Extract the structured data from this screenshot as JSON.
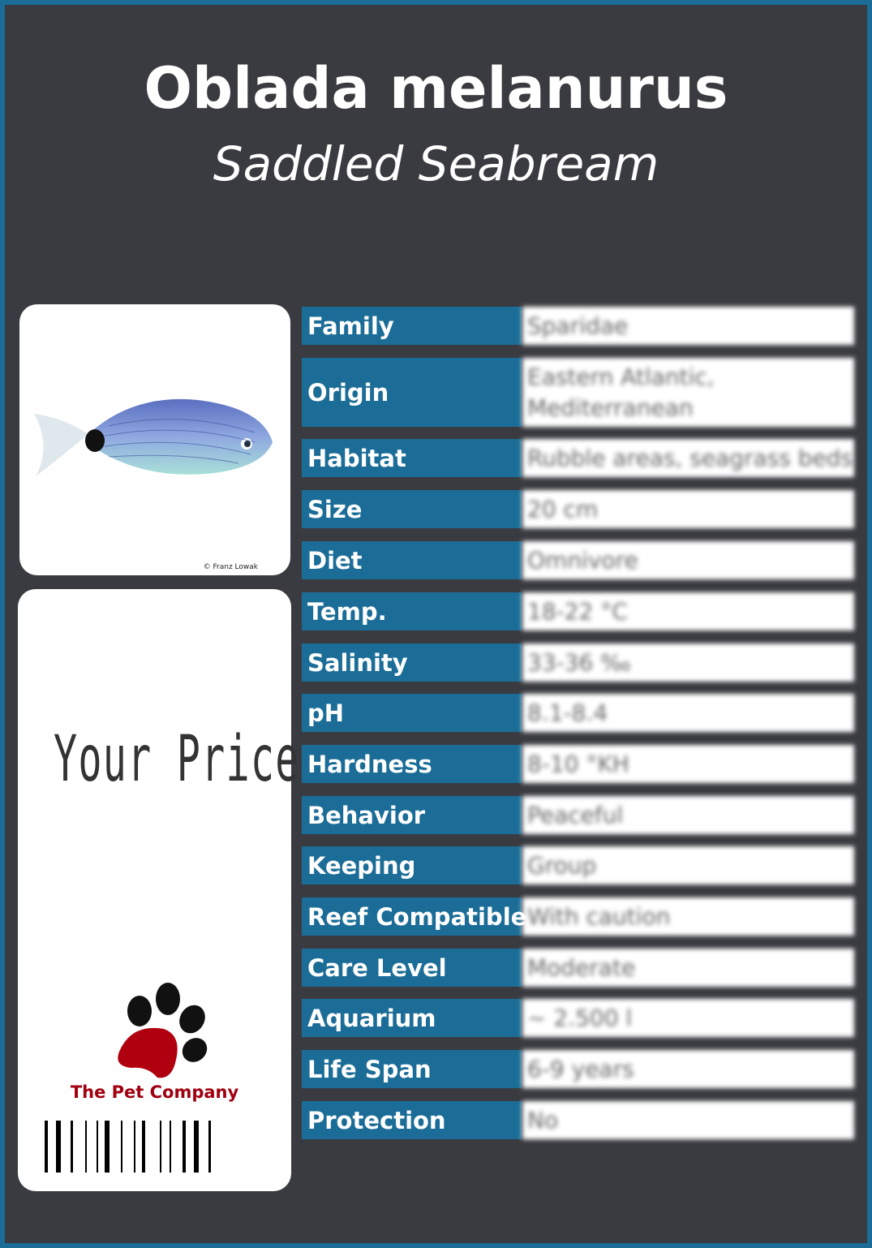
{
  "title": "Oblada melanurus",
  "subtitle": "Saddled Seabream",
  "photo_credit": "© Franz Lowak",
  "price_label": "Your  Price",
  "brand": "The Pet Company",
  "colors": {
    "accent": "#1b6d97",
    "background": "#3a3b40",
    "brand": "#a00010"
  },
  "rows": [
    {
      "label": "Family",
      "value": "Sparidae"
    },
    {
      "label": "Origin",
      "value": "Eastern Atlantic, Mediterranean"
    },
    {
      "label": "Habitat",
      "value": "Rubble areas, seagrass beds"
    },
    {
      "label": "Size",
      "value": "20 cm"
    },
    {
      "label": "Diet",
      "value": "Omnivore"
    },
    {
      "label": "Temp.",
      "value": "18-22 °C"
    },
    {
      "label": "Salinity",
      "value": "33-36 ‰"
    },
    {
      "label": "pH",
      "value": "8.1-8.4"
    },
    {
      "label": "Hardness",
      "value": "8-10 °KH"
    },
    {
      "label": "Behavior",
      "value": "Peaceful"
    },
    {
      "label": "Keeping",
      "value": "Group"
    },
    {
      "label": "Reef Compatible",
      "value": "With caution"
    },
    {
      "label": "Care Level",
      "value": "Moderate"
    },
    {
      "label": "Aquarium",
      "value": "~ 2.500 l"
    },
    {
      "label": "Life Span",
      "value": "6-9 years"
    },
    {
      "label": "Protection",
      "value": "No"
    }
  ]
}
